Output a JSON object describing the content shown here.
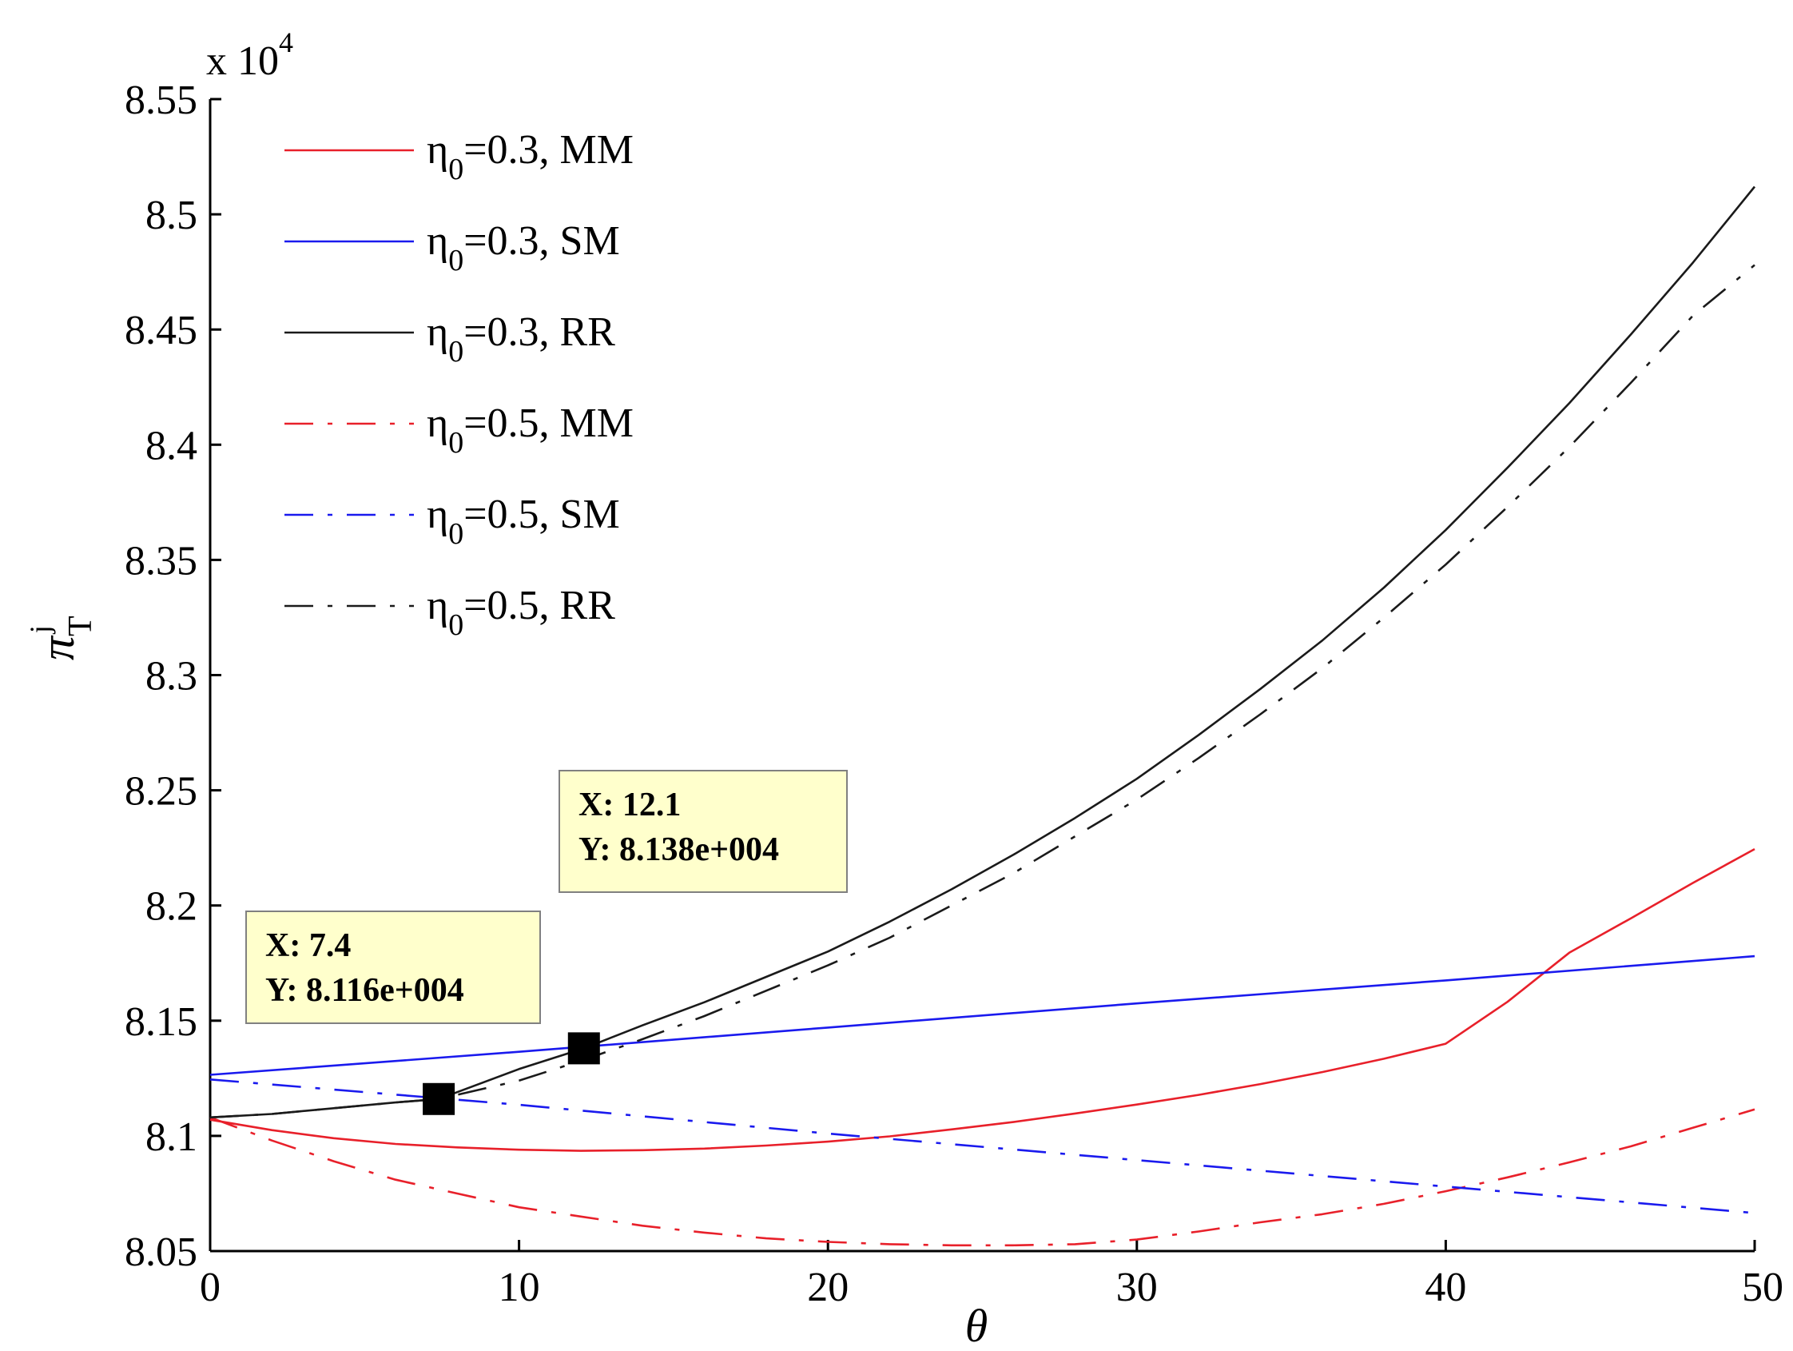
{
  "chart_data": {
    "type": "line",
    "title": "",
    "xlabel": "θ",
    "ylabel_main": "π",
    "ylabel_sub": "T",
    "ylabel_sup": "j",
    "exponent_label": {
      "prefix": "x 10",
      "power": "4"
    },
    "xlim": [
      0,
      50
    ],
    "ylim": [
      8.05,
      8.55
    ],
    "xticks": [
      0,
      10,
      20,
      30,
      40,
      50
    ],
    "xtick_labels": [
      "0",
      "10",
      "20",
      "30",
      "40",
      "50"
    ],
    "yticks": [
      8.05,
      8.1,
      8.15,
      8.2,
      8.25,
      8.3,
      8.35,
      8.4,
      8.45,
      8.5,
      8.55
    ],
    "ytick_labels": [
      "8.05",
      "8.1",
      "8.15",
      "8.2",
      "8.25",
      "8.3",
      "8.35",
      "8.4",
      "8.45",
      "8.5",
      "8.55"
    ],
    "grid": false,
    "legend_position": "top-left",
    "series": [
      {
        "name": "η0=0.3, MM",
        "eta": "η",
        "sub": "0",
        "rest": "=0.3, MM",
        "color": "#e8202a",
        "style": "solid",
        "x": [
          0,
          2,
          4,
          6,
          8,
          10,
          12,
          14,
          16,
          18,
          20,
          22,
          24,
          26,
          28,
          30,
          32,
          34,
          36,
          38,
          40,
          42,
          44,
          46,
          48,
          50
        ],
        "y": [
          8.107,
          8.1025,
          8.099,
          8.0965,
          8.095,
          8.094,
          8.0935,
          8.0938,
          8.0945,
          8.0958,
          8.0975,
          8.0998,
          8.1028,
          8.106,
          8.1097,
          8.1136,
          8.1178,
          8.1225,
          8.1277,
          8.1335,
          8.14,
          8.1582,
          8.1795,
          8.1945,
          8.2098,
          8.2245
        ]
      },
      {
        "name": "η0=0.3, SM",
        "eta": "η",
        "sub": "0",
        "rest": "=0.3, SM",
        "color": "#1a1aee",
        "style": "solid",
        "x": [
          0,
          10,
          20,
          30,
          40,
          50
        ],
        "y": [
          8.1265,
          8.1365,
          8.147,
          8.1575,
          8.1675,
          8.178
        ]
      },
      {
        "name": "η0=0.3, RR",
        "eta": "η",
        "sub": "0",
        "rest": "=0.3, RR",
        "color": "#1a1a1a",
        "style": "solid",
        "x": [
          0,
          2,
          4,
          6,
          7.4,
          10,
          12.1,
          14,
          16,
          18,
          20,
          22,
          24,
          26,
          28,
          30,
          32,
          34,
          36,
          38,
          40,
          42,
          44,
          46,
          48,
          50
        ],
        "y": [
          8.108,
          8.1095,
          8.112,
          8.1145,
          8.116,
          8.129,
          8.138,
          8.148,
          8.158,
          8.169,
          8.18,
          8.193,
          8.207,
          8.222,
          8.238,
          8.255,
          8.274,
          8.294,
          8.315,
          8.338,
          8.363,
          8.39,
          8.418,
          8.448,
          8.479,
          8.512
        ]
      },
      {
        "name": "η0=0.5, MM",
        "eta": "η",
        "sub": "0",
        "rest": "=0.5, MM",
        "color": "#e8202a",
        "style": "dashdot",
        "x": [
          0,
          2,
          4,
          6,
          8,
          10,
          12,
          14,
          16,
          18,
          20,
          22,
          24,
          26,
          28,
          30,
          32,
          34,
          36,
          38,
          40,
          42,
          44,
          46,
          48,
          50
        ],
        "y": [
          8.108,
          8.098,
          8.089,
          8.081,
          8.075,
          8.069,
          8.065,
          8.061,
          8.058,
          8.0555,
          8.054,
          8.053,
          8.0525,
          8.0525,
          8.053,
          8.055,
          8.0585,
          8.0625,
          8.066,
          8.0705,
          8.076,
          8.082,
          8.0885,
          8.0955,
          8.1035,
          8.1115
        ]
      },
      {
        "name": "η0=0.5, SM",
        "eta": "η",
        "sub": "0",
        "rest": "=0.5, SM",
        "color": "#1a1aee",
        "style": "dashdot",
        "x": [
          0,
          10,
          20,
          30,
          40,
          50
        ],
        "y": [
          8.1245,
          8.1135,
          8.101,
          8.0895,
          8.078,
          8.0665
        ]
      },
      {
        "name": "η0=0.5, RR",
        "eta": "η",
        "sub": "0",
        "rest": "=0.5, RR",
        "color": "#1a1a1a",
        "style": "dashdot",
        "x": [
          0,
          2,
          4,
          6,
          7.4,
          10,
          12.1,
          14,
          16,
          18,
          20,
          22,
          24,
          26,
          28,
          30,
          32,
          34,
          36,
          38,
          40,
          42,
          44,
          46,
          48,
          50
        ],
        "y": [
          8.108,
          8.1095,
          8.112,
          8.1145,
          8.116,
          8.124,
          8.133,
          8.142,
          8.152,
          8.163,
          8.174,
          8.186,
          8.2,
          8.214,
          8.23,
          8.246,
          8.264,
          8.283,
          8.303,
          8.325,
          8.348,
          8.373,
          8.399,
          8.427,
          8.456,
          8.478
        ]
      }
    ],
    "annotations": [
      {
        "x": 7.4,
        "y": 8.116,
        "xtext": "X: 7.4",
        "ytext": "Y: 8.116e+004"
      },
      {
        "x": 12.1,
        "y": 8.138,
        "xtext": "X: 12.1",
        "ytext": "Y: 8.138e+004"
      }
    ]
  }
}
